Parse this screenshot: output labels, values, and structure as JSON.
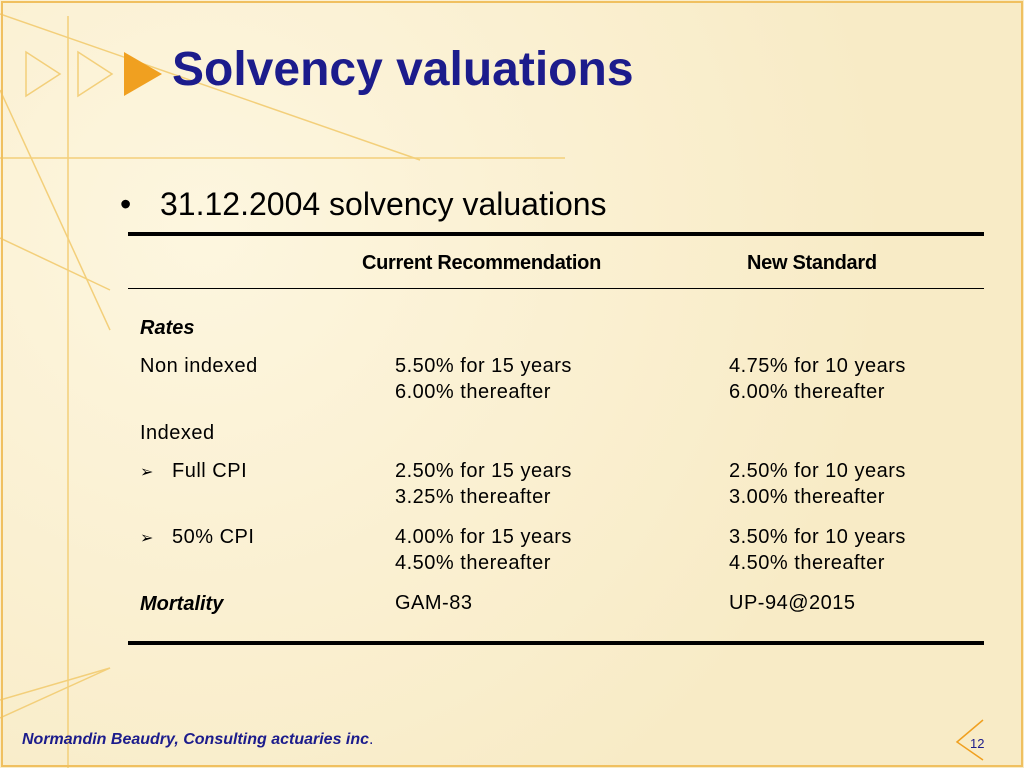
{
  "slide": {
    "title": "Solvency valuations",
    "bullet": "31.12.2004 solvency valuations",
    "table": {
      "headers": [
        "",
        "Current Recommendation",
        "New Standard"
      ],
      "rates_label": "Rates",
      "non_indexed": {
        "label": "Non indexed",
        "current": [
          "5.50% for 15 years",
          "6.00% thereafter"
        ],
        "new": [
          "4.75% for 10 years",
          "6.00% thereafter"
        ]
      },
      "indexed_label": "Indexed",
      "full_cpi": {
        "label": "Full CPI",
        "current": [
          "2.50% for 15 years",
          "3.25% thereafter"
        ],
        "new": [
          "2.50% for 10 years",
          "3.00% thereafter"
        ]
      },
      "half_cpi": {
        "label": "50% CPI",
        "current": [
          "4.00% for 15 years",
          "4.50% thereafter"
        ],
        "new": [
          "3.50% for 10 years",
          "4.50% thereafter"
        ]
      },
      "mortality": {
        "label": "Mortality",
        "current": "GAM-83",
        "new": "UP-94@2015"
      }
    },
    "footer": {
      "company": "Normandin Beaudry, Consulting actuaries inc",
      "period": ".",
      "page_number": "12"
    },
    "colors": {
      "title": "#1c1c8c",
      "accent": "#f0a020",
      "background": "#fbf1d3"
    }
  }
}
